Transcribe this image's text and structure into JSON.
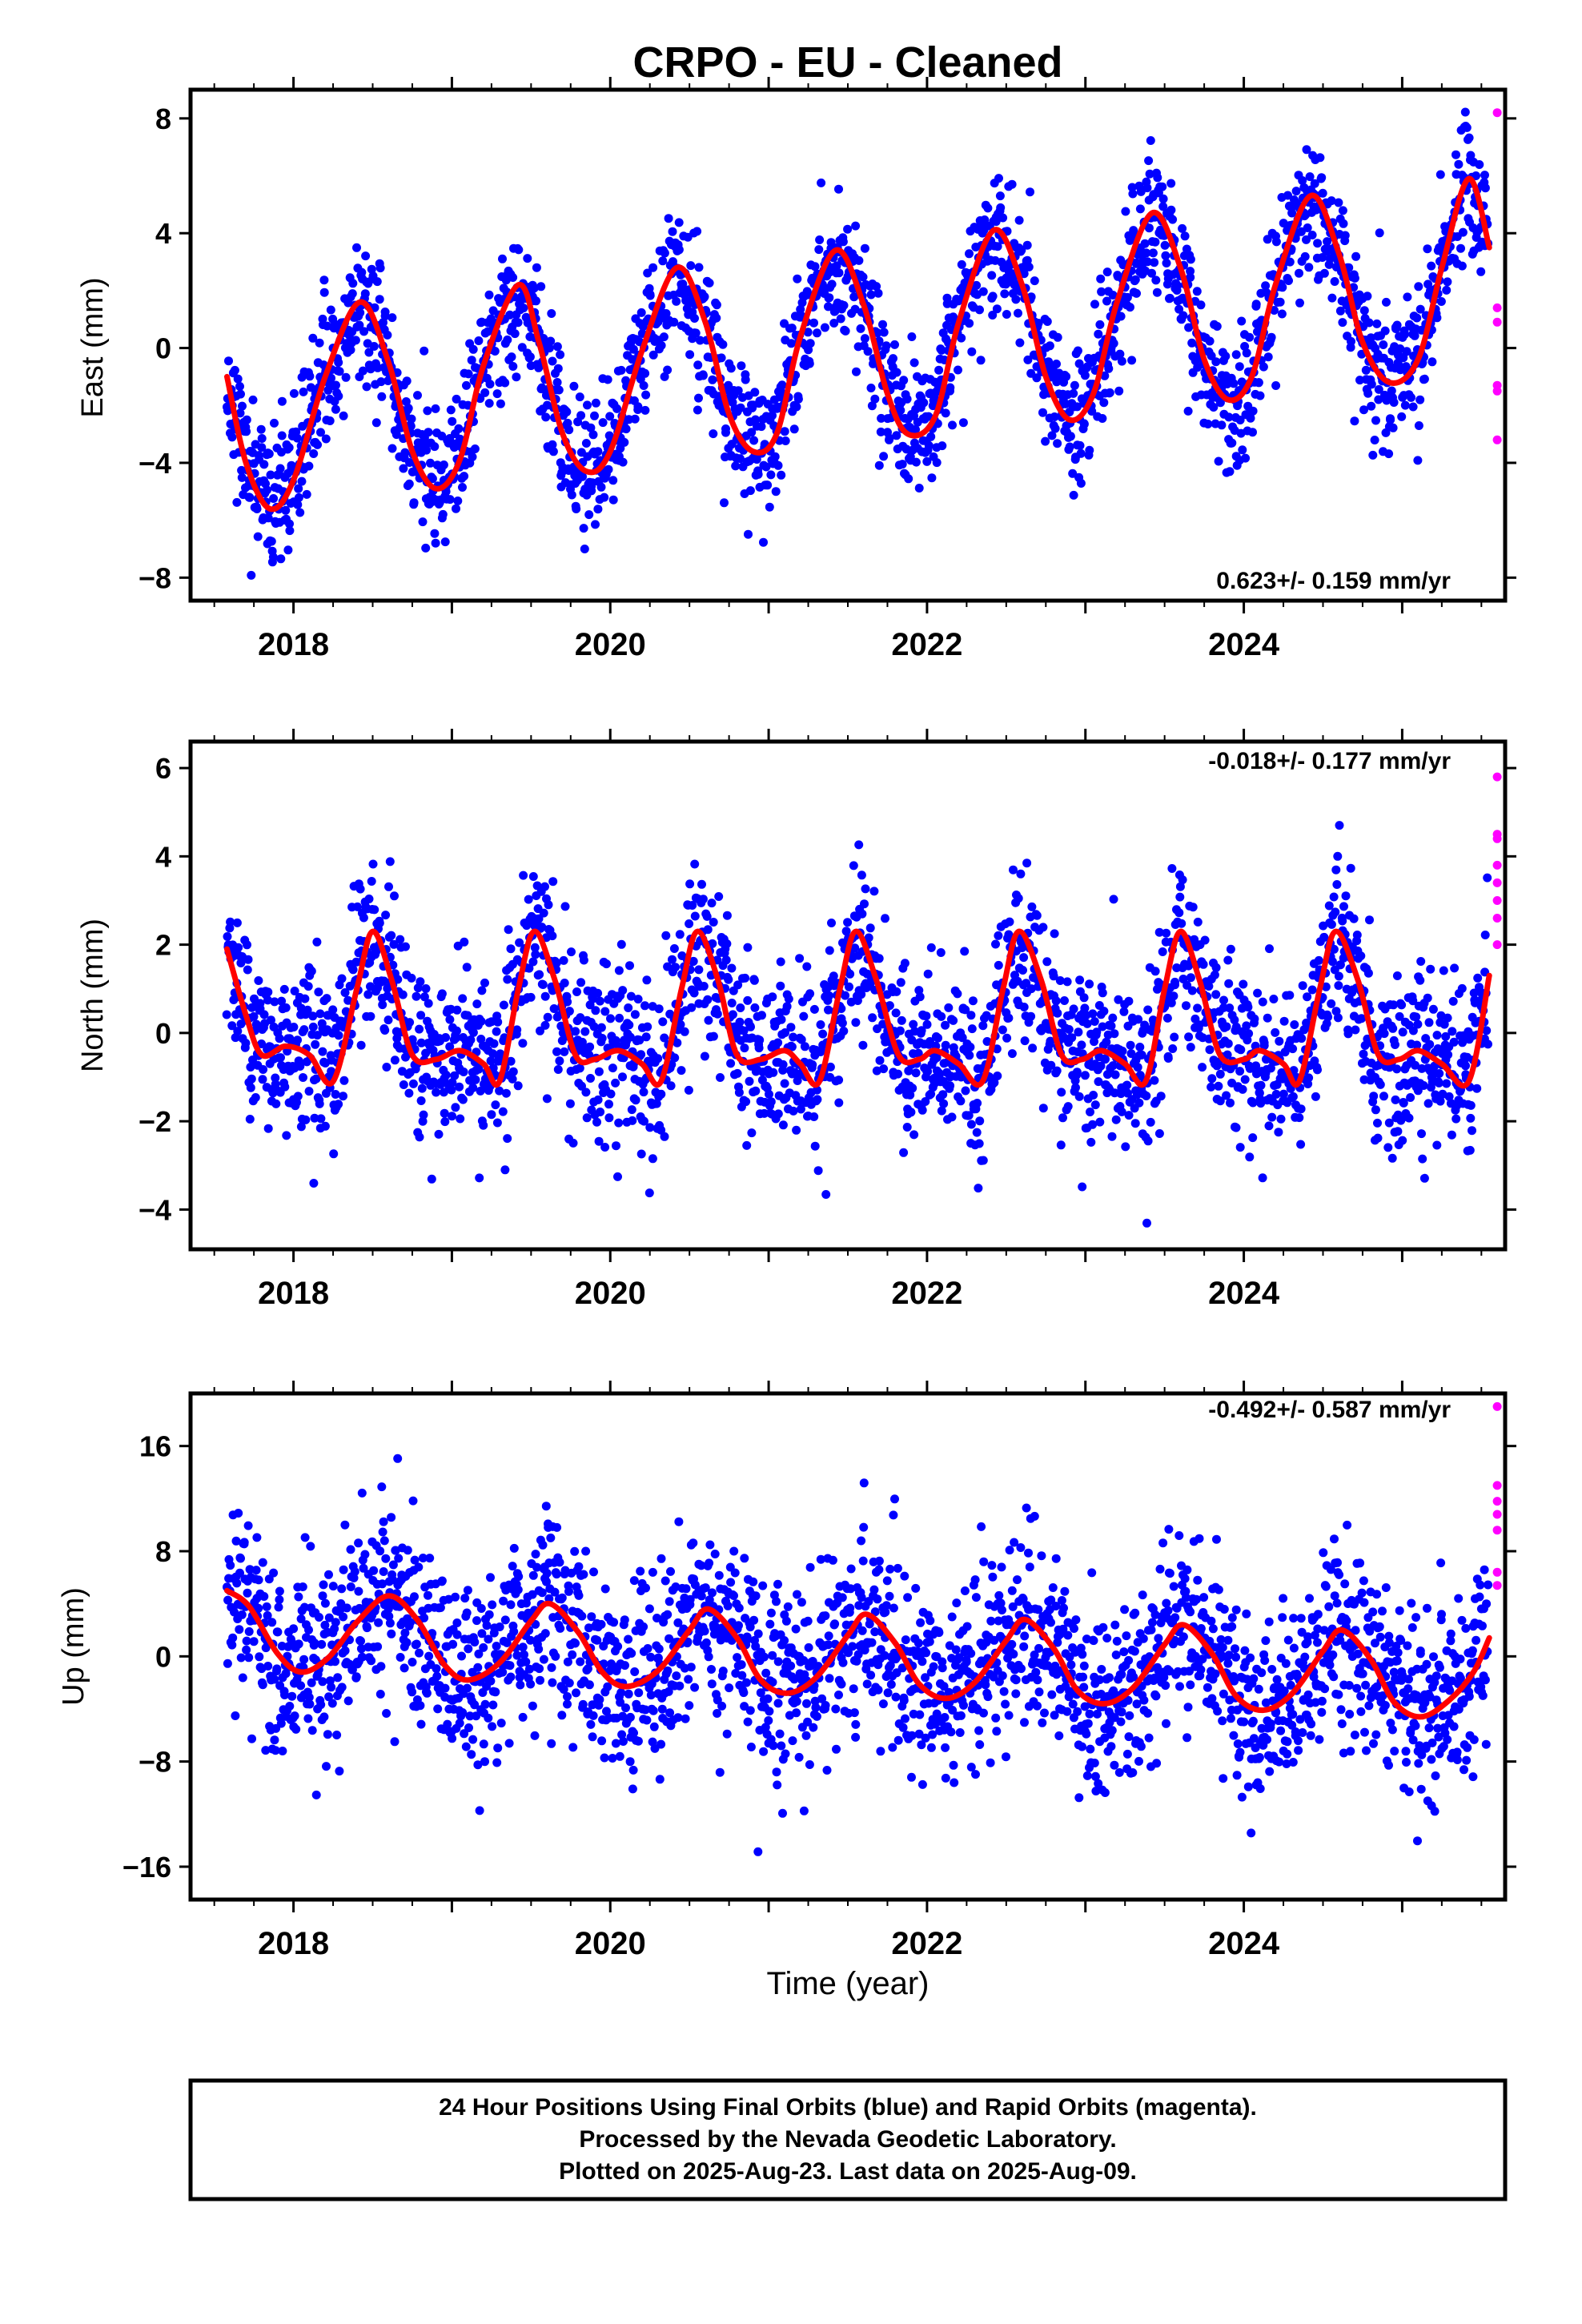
{
  "title": "CRPO  - EU - Cleaned",
  "xlabel": "Time (year)",
  "footer": {
    "line1": "24 Hour Positions Using Final Orbits (blue) and Rapid Orbits (magenta).",
    "line2": "Processed by the Nevada Geodetic Laboratory.",
    "line3": "Plotted on 2025-Aug-23. Last data on 2025-Aug-09."
  },
  "colors": {
    "final": "#0000ff",
    "rapid": "#ff00ff",
    "model": "#ff0000"
  },
  "chart_data": [
    {
      "type": "scatter",
      "panel": "east",
      "ylabel": "East (mm)",
      "rate_label": "0.623+/- 0.159 mm/yr",
      "xlim": [
        2017.35,
        2025.65
      ],
      "ylim": [
        -8.8,
        9.0
      ],
      "xticks": [
        2018,
        2020,
        2022,
        2024
      ],
      "yticks": [
        -8,
        -4,
        0,
        4,
        8
      ],
      "model": {
        "trend": 0.623,
        "x": [
          2017.58,
          2017.7,
          2017.85,
          2018.0,
          2018.2,
          2018.42,
          2018.6,
          2018.75,
          2018.9,
          2019.05,
          2019.2,
          2019.42,
          2019.55,
          2019.7,
          2019.85,
          2020.0,
          2020.2,
          2020.42,
          2020.6,
          2020.75,
          2020.9,
          2021.05,
          2021.2,
          2021.42,
          2021.6,
          2021.75,
          2021.88,
          2022.05,
          2022.2,
          2022.42,
          2022.6,
          2022.75,
          2022.9,
          2023.05,
          2023.2,
          2023.42,
          2023.6,
          2023.75,
          2023.9,
          2024.05,
          2024.2,
          2024.42,
          2024.6,
          2024.75,
          2024.92,
          2025.1,
          2025.25,
          2025.42,
          2025.55
        ],
        "y": [
          -1.0,
          -4.0,
          -5.6,
          -4.6,
          -1.0,
          1.6,
          -0.5,
          -3.6,
          -4.9,
          -3.9,
          -0.6,
          2.2,
          0.2,
          -3.0,
          -4.3,
          -3.6,
          -0.1,
          2.8,
          0.9,
          -2.3,
          -3.6,
          -3.0,
          0.4,
          3.4,
          1.5,
          -1.6,
          -3.0,
          -2.4,
          0.9,
          4.1,
          2.2,
          -1.0,
          -2.5,
          -1.6,
          1.6,
          4.7,
          2.8,
          -0.4,
          -1.8,
          -1.0,
          2.2,
          5.3,
          3.3,
          0.2,
          -1.2,
          -0.4,
          2.8,
          5.9,
          3.5
        ]
      },
      "scatter": {
        "count": 2300,
        "noise_sd": 1.2,
        "seed": 11
      },
      "rapid": {
        "x": 2025.6,
        "y": [
          8.2,
          1.4,
          0.9,
          -1.3,
          -1.5,
          -3.2
        ]
      }
    },
    {
      "type": "scatter",
      "panel": "north",
      "ylabel": "North (mm)",
      "rate_label": "-0.018+/- 0.177 mm/yr",
      "xlim": [
        2017.35,
        2025.65
      ],
      "ylim": [
        -4.9,
        6.6
      ],
      "xticks": [
        2018,
        2020,
        2022,
        2024
      ],
      "yticks": [
        -4,
        -2,
        0,
        2,
        4,
        6
      ],
      "model": {
        "trend": -0.018,
        "x": [
          2017.58,
          2017.7,
          2017.8,
          2017.95,
          2018.1,
          2018.25,
          2018.4,
          2018.5,
          2018.62,
          2018.75,
          2018.9,
          2019.05,
          2019.2,
          2019.3,
          2019.42,
          2019.52,
          2019.65,
          2019.78,
          2019.9,
          2020.05,
          2020.2,
          2020.32,
          2020.45,
          2020.55,
          2020.68,
          2020.8,
          2020.95,
          2021.1,
          2021.2,
          2021.32,
          2021.45,
          2021.55,
          2021.68,
          2021.82,
          2021.95,
          2022.05,
          2022.2,
          2022.35,
          2022.48,
          2022.58,
          2022.72,
          2022.85,
          2022.98,
          2023.1,
          2023.25,
          2023.38,
          2023.5,
          2023.6,
          2023.72,
          2023.85,
          2024.0,
          2024.1,
          2024.25,
          2024.35,
          2024.48,
          2024.58,
          2024.72,
          2024.85,
          2024.98,
          2025.1,
          2025.25,
          2025.42,
          2025.55
        ],
        "y": [
          1.9,
          0.4,
          -0.5,
          -0.3,
          -0.5,
          -1.1,
          1.0,
          2.3,
          1.2,
          -0.5,
          -0.6,
          -0.4,
          -0.7,
          -1.1,
          1.0,
          2.3,
          1.2,
          -0.5,
          -0.6,
          -0.4,
          -0.7,
          -1.1,
          1.0,
          2.3,
          1.2,
          -0.5,
          -0.6,
          -0.4,
          -0.7,
          -1.1,
          1.0,
          2.3,
          1.2,
          -0.5,
          -0.6,
          -0.4,
          -0.7,
          -1.1,
          1.0,
          2.3,
          1.2,
          -0.5,
          -0.6,
          -0.4,
          -0.7,
          -1.1,
          1.0,
          2.3,
          1.2,
          -0.5,
          -0.6,
          -0.4,
          -0.7,
          -1.1,
          1.0,
          2.3,
          1.2,
          -0.5,
          -0.6,
          -0.4,
          -0.7,
          -1.1,
          1.3
        ]
      },
      "scatter": {
        "count": 2300,
        "noise_sd": 0.95,
        "seed": 23
      },
      "rapid": {
        "x": 2025.6,
        "y": [
          5.8,
          4.5,
          4.4,
          3.8,
          3.4,
          3.0,
          2.6,
          2.0
        ]
      }
    },
    {
      "type": "scatter",
      "panel": "up",
      "ylabel": "Up (mm)",
      "rate_label": "-0.492+/- 0.587 mm/yr",
      "xlim": [
        2017.35,
        2025.65
      ],
      "ylim": [
        -18.5,
        20.0
      ],
      "xticks": [
        2018,
        2020,
        2022,
        2024
      ],
      "yticks": [
        -16,
        -8,
        0,
        8,
        16
      ],
      "model": {
        "trend": -0.492,
        "x": [
          2017.58,
          2017.72,
          2017.9,
          2018.05,
          2018.22,
          2018.4,
          2018.6,
          2018.78,
          2018.95,
          2019.1,
          2019.3,
          2019.5,
          2019.62,
          2019.8,
          2019.95,
          2020.1,
          2020.3,
          2020.5,
          2020.62,
          2020.8,
          2020.95,
          2021.12,
          2021.3,
          2021.5,
          2021.62,
          2021.8,
          2021.95,
          2022.12,
          2022.3,
          2022.5,
          2022.62,
          2022.8,
          2022.95,
          2023.12,
          2023.3,
          2023.5,
          2023.62,
          2023.8,
          2023.95,
          2024.12,
          2024.3,
          2024.5,
          2024.62,
          2024.8,
          2024.95,
          2025.12,
          2025.3,
          2025.45,
          2025.55
        ],
        "y": [
          5.0,
          3.8,
          0.2,
          -1.2,
          -0.1,
          2.6,
          4.6,
          2.8,
          -0.6,
          -1.8,
          -0.5,
          2.7,
          4.0,
          1.8,
          -1.2,
          -2.3,
          -1.1,
          2.0,
          3.6,
          1.4,
          -1.8,
          -2.8,
          -1.6,
          1.6,
          3.2,
          1.0,
          -2.1,
          -3.2,
          -2.0,
          1.2,
          2.8,
          0.6,
          -2.6,
          -3.6,
          -2.4,
          0.9,
          2.4,
          0.2,
          -3.0,
          -4.1,
          -2.9,
          0.4,
          2.0,
          -0.2,
          -3.5,
          -4.6,
          -3.3,
          -1.2,
          1.4
        ]
      },
      "scatter": {
        "count": 2300,
        "noise_sd": 3.6,
        "seed": 37
      },
      "rapid": {
        "x": 2025.6,
        "y": [
          19.0,
          13.0,
          11.8,
          10.8,
          9.6,
          6.4,
          5.4
        ]
      }
    }
  ]
}
